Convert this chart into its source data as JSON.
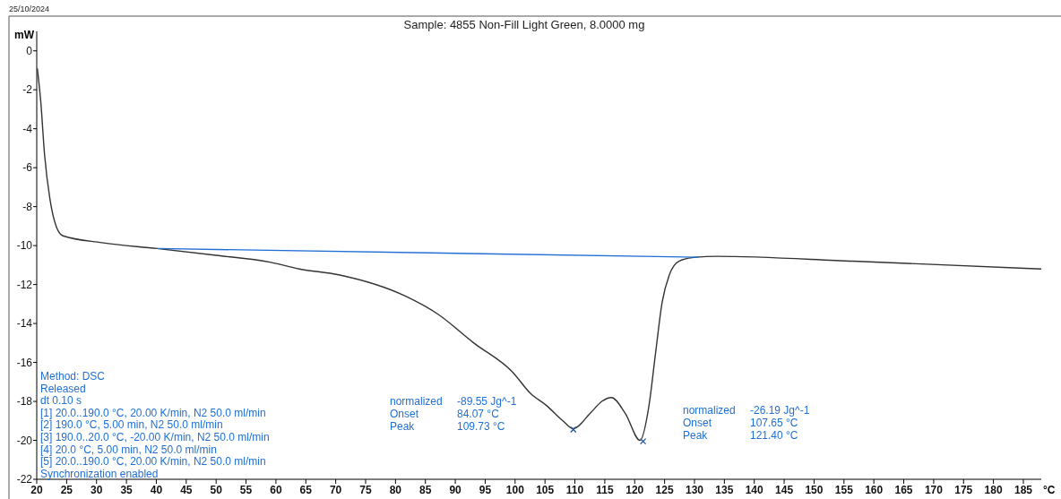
{
  "chart_data": {
    "type": "line",
    "title": "Sample: 4855 Non-Fill Light Green, 8.0000 mg",
    "xlabel": "°C",
    "ylabel": "mW",
    "xlim": [
      20,
      188
    ],
    "xticks": [
      20,
      25,
      30,
      35,
      40,
      45,
      50,
      55,
      60,
      65,
      70,
      75,
      80,
      85,
      90,
      95,
      100,
      105,
      110,
      115,
      120,
      125,
      130,
      135,
      140,
      145,
      150,
      155,
      160,
      165,
      170,
      175,
      180,
      185
    ],
    "ylim": [
      -22,
      1
    ],
    "yticks": [
      0,
      -2,
      -4,
      -6,
      -8,
      -10,
      -12,
      -14,
      -16,
      -18,
      -20,
      -22
    ],
    "grid": false,
    "annotations": [
      "25/10/2024",
      "Method: DSC\nReleased\ndt 0.10 s\n[1] 20.0..190.0 °C, 20.00 K/min, N2 50.0 ml/min\n[2] 190.0 °C, 5.00 min, N2 50.0 ml/min\n[3] 190.0..20.0 °C, -20.00 K/min, N2 50.0 ml/min\n[4] 20.0 °C, 5.00 min, N2 50.0 ml/min\n[5] 20.0..190.0 °C, 20.00 K/min, N2 50.0 ml/min\nSynchronization enabled",
      "normalized\t-89.55 Jg^-1\nOnset\t84.07 °C\nPeak\t109.73 °C",
      "normalized\t-26.19 Jg^-1\nOnset\t107.65 °C\nPeak\t121.40 °C"
    ],
    "series": [
      {
        "color": "#333333",
        "x": [
          20.1,
          20.7,
          21.3,
          22.2,
          23.3,
          24.4,
          30.9,
          40.1,
          50,
          59,
          63.9,
          70.5,
          81.7,
          87,
          93.1,
          99.6,
          102.6,
          105.2,
          108,
          109.7,
          112.6,
          114.5,
          116.1,
          118.4,
          120.9,
          122.4,
          123.5,
          124.6,
          125.8,
          127.4,
          130.2,
          133.7,
          156.5,
          188
        ],
        "values": [
          -0.9,
          -2.7,
          -5.3,
          -7.6,
          -9.05,
          -9.5,
          -9.85,
          -10.15,
          -10.5,
          -10.85,
          -11.2,
          -11.5,
          -12.6,
          -13.5,
          -15.0,
          -16.5,
          -17.6,
          -18.2,
          -19.0,
          -19.4,
          -18.6,
          -18.0,
          -17.8,
          -18.6,
          -20.0,
          -18.2,
          -15.5,
          -12.9,
          -11.5,
          -10.8,
          -10.6,
          -10.55,
          -10.8,
          -11.2
        ]
      },
      {
        "type": "line",
        "color": "#1f6fd6",
        "x": [
          40.1,
          130.7
        ],
        "values": [
          -10.15,
          -10.6
        ]
      },
      {
        "type": "scatter",
        "marker": "cross",
        "color": "#1f4fa0",
        "x": [
          109.73,
          121.4
        ],
        "values": [
          -19.45,
          -20.05
        ]
      }
    ]
  }
}
